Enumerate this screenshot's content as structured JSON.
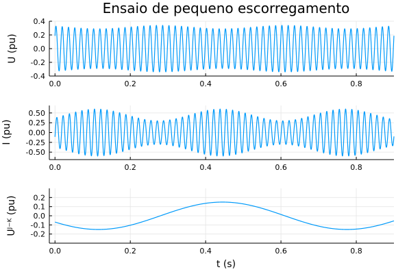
{
  "chart_data": [
    {
      "type": "line",
      "title": "Ensaio de pequeno escorregamento",
      "ylabel": "U (pu)",
      "xlabel": "",
      "xlim": [
        -0.015,
        0.9
      ],
      "ylim": [
        -0.4,
        0.4
      ],
      "x_ticks": [
        0.0,
        0.2,
        0.4,
        0.6,
        0.8
      ],
      "x_tick_labels": [
        "0.0",
        "0.2",
        "0.4",
        "0.6",
        "0.8"
      ],
      "y_ticks": [
        -0.4,
        -0.2,
        0.0,
        0.2,
        0.4
      ],
      "y_tick_labels": [
        "-0.4",
        "-0.2",
        "0.0",
        "0.2",
        "0.4"
      ],
      "grid": true,
      "legend": "none",
      "series": [
        {
          "color": "#009AFA",
          "signal": "modulated sinusoid",
          "frequency_hz": 60,
          "amplitude_max": 0.34,
          "amplitude_min": 0.29,
          "envelope_period_s": 0.33,
          "envelope_peaks_s": [
            0.28,
            0.61
          ],
          "x_range": [
            0.0,
            0.9
          ],
          "phase_rad": 0.6
        }
      ]
    },
    {
      "type": "line",
      "title": "",
      "ylabel": "I (pu)",
      "xlabel": "",
      "xlim": [
        -0.015,
        0.9
      ],
      "ylim": [
        -0.69,
        0.69
      ],
      "x_ticks": [
        0.0,
        0.2,
        0.4,
        0.6,
        0.8
      ],
      "x_tick_labels": [
        "0.0",
        "0.2",
        "0.4",
        "0.6",
        "0.8"
      ],
      "y_ticks": [
        -0.5,
        -0.25,
        0.0,
        0.25,
        0.5
      ],
      "y_tick_labels": [
        "-0.50",
        "-0.25",
        "0.00",
        "0.25",
        "0.50"
      ],
      "grid": true,
      "legend": "none",
      "series": [
        {
          "color": "#009AFA",
          "signal": "modulated sinusoid",
          "frequency_hz": 60,
          "amplitude_max": 0.6,
          "amplitude_min": 0.3,
          "envelope_period_s": 0.33,
          "envelope_peaks_s": [
            0.11,
            0.44,
            0.77
          ],
          "x_range": [
            0.0,
            0.9
          ],
          "phase_rad": -0.3
        }
      ]
    },
    {
      "type": "line",
      "title": "",
      "ylabel": "Uᴶ⁻ᴷ (pu)",
      "xlabel": "t (s)",
      "xlim": [
        -0.015,
        0.9
      ],
      "ylim": [
        -0.3,
        0.3
      ],
      "x_ticks": [
        0.0,
        0.2,
        0.4,
        0.6,
        0.8
      ],
      "x_tick_labels": [
        "0.0",
        "0.2",
        "0.4",
        "0.6",
        "0.8"
      ],
      "y_ticks": [
        -0.2,
        -0.1,
        0.0,
        0.1,
        0.2
      ],
      "y_tick_labels": [
        "-0.2",
        "-0.1",
        "0.0",
        "0.1",
        "0.2"
      ],
      "grid": true,
      "legend": "none",
      "series": [
        {
          "color": "#009AFA",
          "signal": "sinusoid",
          "amplitude": 0.15,
          "period_s": 0.66,
          "peak_at_s": 0.445,
          "x_range": [
            0.0,
            0.9
          ]
        }
      ]
    }
  ]
}
